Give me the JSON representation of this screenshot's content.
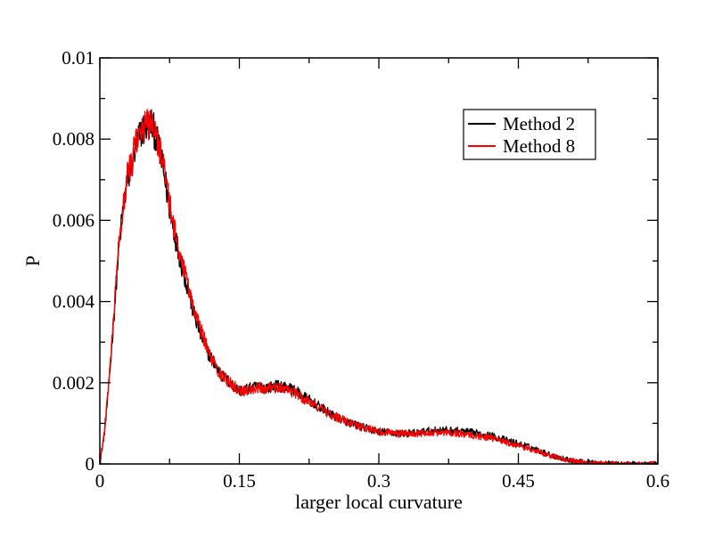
{
  "chart_data": {
    "type": "line",
    "title": "",
    "xlabel": "larger local curvature",
    "ylabel": "P",
    "xlim": [
      0,
      0.6
    ],
    "ylim": [
      0,
      0.01
    ],
    "x_ticks": [
      "0",
      "0.15",
      "0.3",
      "0.45",
      "0.6"
    ],
    "x_tick_values": [
      0,
      0.15,
      0.3,
      0.45,
      0.6
    ],
    "y_ticks": [
      "0",
      "0.002",
      "0.004",
      "0.006",
      "0.008",
      "0.01"
    ],
    "y_tick_values": [
      0,
      0.002,
      0.004,
      0.006,
      0.008,
      0.01
    ],
    "grid": false,
    "legend_position": "top-right",
    "series": [
      {
        "name": "Method 2",
        "color": "#000000",
        "x": [
          0.0,
          0.005,
          0.01,
          0.015,
          0.02,
          0.025,
          0.03,
          0.035,
          0.04,
          0.045,
          0.05,
          0.055,
          0.06,
          0.065,
          0.07,
          0.075,
          0.08,
          0.085,
          0.09,
          0.095,
          0.1,
          0.105,
          0.11,
          0.115,
          0.12,
          0.125,
          0.13,
          0.135,
          0.14,
          0.145,
          0.15,
          0.16,
          0.17,
          0.18,
          0.19,
          0.2,
          0.21,
          0.22,
          0.23,
          0.24,
          0.25,
          0.26,
          0.27,
          0.28,
          0.29,
          0.3,
          0.31,
          0.32,
          0.33,
          0.34,
          0.35,
          0.36,
          0.37,
          0.38,
          0.39,
          0.4,
          0.41,
          0.42,
          0.43,
          0.44,
          0.45,
          0.46,
          0.47,
          0.48,
          0.49,
          0.5,
          0.51,
          0.52,
          0.53,
          0.54,
          0.55,
          0.56,
          0.57,
          0.58,
          0.59,
          0.6
        ],
        "y": [
          0.0,
          0.0008,
          0.002,
          0.0036,
          0.0052,
          0.0063,
          0.007,
          0.0074,
          0.0079,
          0.0082,
          0.0083,
          0.0084,
          0.0081,
          0.0076,
          0.007,
          0.0063,
          0.0057,
          0.0052,
          0.0047,
          0.0043,
          0.0038,
          0.0034,
          0.0031,
          0.0028,
          0.0026,
          0.0024,
          0.0022,
          0.0021,
          0.002,
          0.0019,
          0.0018,
          0.00185,
          0.0019,
          0.00188,
          0.00192,
          0.0019,
          0.0018,
          0.00165,
          0.0015,
          0.00135,
          0.0012,
          0.0011,
          0.001,
          0.00092,
          0.00085,
          0.0008,
          0.00078,
          0.00075,
          0.00075,
          0.00077,
          0.0008,
          0.00082,
          0.00083,
          0.00082,
          0.0008,
          0.00077,
          0.00074,
          0.0007,
          0.00063,
          0.00056,
          0.0005,
          0.00043,
          0.00035,
          0.00026,
          0.00018,
          0.00012,
          8e-05,
          5e-05,
          3e-05,
          2e-05,
          1e-05,
          0.0,
          0.0,
          0.0,
          0.0,
          0.0
        ]
      },
      {
        "name": "Method 8",
        "color": "#ff0000",
        "x": [
          0.0,
          0.005,
          0.01,
          0.015,
          0.02,
          0.025,
          0.03,
          0.035,
          0.04,
          0.045,
          0.05,
          0.055,
          0.06,
          0.065,
          0.07,
          0.075,
          0.08,
          0.085,
          0.09,
          0.095,
          0.1,
          0.105,
          0.11,
          0.115,
          0.12,
          0.125,
          0.13,
          0.135,
          0.14,
          0.145,
          0.15,
          0.16,
          0.17,
          0.18,
          0.19,
          0.2,
          0.21,
          0.22,
          0.23,
          0.24,
          0.25,
          0.26,
          0.27,
          0.28,
          0.29,
          0.3,
          0.31,
          0.32,
          0.33,
          0.34,
          0.35,
          0.36,
          0.37,
          0.38,
          0.39,
          0.4,
          0.41,
          0.42,
          0.43,
          0.44,
          0.45,
          0.46,
          0.47,
          0.48,
          0.49,
          0.5,
          0.51,
          0.52,
          0.53,
          0.54,
          0.55,
          0.56,
          0.57,
          0.58,
          0.59,
          0.6
        ],
        "y": [
          0.0,
          0.0008,
          0.0021,
          0.0037,
          0.0053,
          0.0064,
          0.0071,
          0.0075,
          0.008,
          0.0082,
          0.0083,
          0.0085,
          0.0082,
          0.0077,
          0.0071,
          0.0064,
          0.0058,
          0.0053,
          0.0048,
          0.0044,
          0.0039,
          0.0035,
          0.0032,
          0.0029,
          0.0026,
          0.0024,
          0.0022,
          0.0021,
          0.002,
          0.0019,
          0.0018,
          0.00182,
          0.00188,
          0.00186,
          0.00188,
          0.00185,
          0.00175,
          0.0016,
          0.00148,
          0.00133,
          0.0012,
          0.0011,
          0.001,
          0.00092,
          0.00085,
          0.0008,
          0.00077,
          0.00075,
          0.00074,
          0.00075,
          0.00077,
          0.00078,
          0.00078,
          0.00077,
          0.00075,
          0.00072,
          0.00068,
          0.00064,
          0.00058,
          0.00052,
          0.00046,
          0.0004,
          0.00032,
          0.00024,
          0.00017,
          0.00011,
          7e-05,
          4e-05,
          2e-05,
          1e-05,
          1e-05,
          0.0,
          0.0,
          0.0,
          0.0,
          0.0
        ]
      }
    ]
  }
}
